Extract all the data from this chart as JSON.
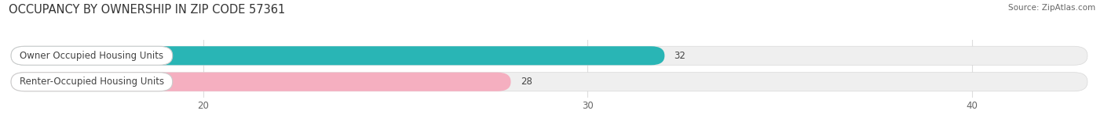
{
  "title": "OCCUPANCY BY OWNERSHIP IN ZIP CODE 57361",
  "source": "Source: ZipAtlas.com",
  "categories": [
    "Owner Occupied Housing Units",
    "Renter-Occupied Housing Units"
  ],
  "values": [
    32,
    28
  ],
  "bar_colors": [
    "#29b5b5",
    "#f5afc0"
  ],
  "xlim": [
    15,
    43
  ],
  "xticks": [
    20,
    30,
    40
  ],
  "title_fontsize": 10.5,
  "source_fontsize": 7.5,
  "label_fontsize": 8.5,
  "value_fontsize": 8.5,
  "bar_height": 0.72,
  "figsize": [
    14.06,
    1.6
  ],
  "dpi": 100
}
